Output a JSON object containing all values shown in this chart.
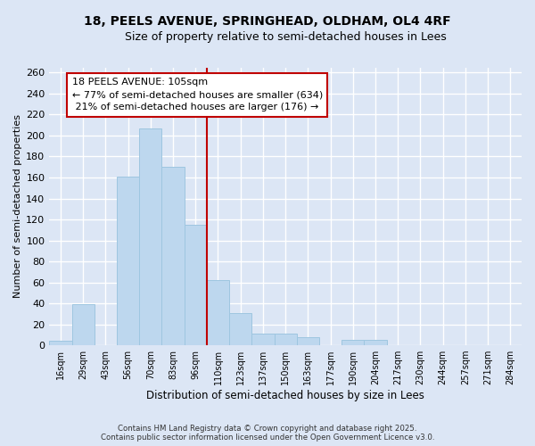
{
  "title": "18, PEELS AVENUE, SPRINGHEAD, OLDHAM, OL4 4RF",
  "subtitle": "Size of property relative to semi-detached houses in Lees",
  "xlabel": "Distribution of semi-detached houses by size in Lees",
  "ylabel": "Number of semi-detached properties",
  "bar_labels": [
    "16sqm",
    "29sqm",
    "43sqm",
    "56sqm",
    "70sqm",
    "83sqm",
    "96sqm",
    "110sqm",
    "123sqm",
    "137sqm",
    "150sqm",
    "163sqm",
    "177sqm",
    "190sqm",
    "204sqm",
    "217sqm",
    "230sqm",
    "244sqm",
    "257sqm",
    "271sqm",
    "284sqm"
  ],
  "bar_values": [
    4,
    39,
    0,
    161,
    207,
    170,
    115,
    62,
    31,
    11,
    11,
    8,
    0,
    5,
    5,
    0,
    0,
    0,
    0,
    0,
    0
  ],
  "bar_color": "#bdd7ee",
  "bar_edge_color": "#9ec6e0",
  "bg_color": "#dce6f5",
  "grid_color": "#c8d8ee",
  "vline_color": "#c00000",
  "annotation_title": "18 PEELS AVENUE: 105sqm",
  "annotation_line1": "← 77% of semi-detached houses are smaller (634)",
  "annotation_line2": " 21% of semi-detached houses are larger (176) →",
  "ylim": [
    0,
    265
  ],
  "yticks": [
    0,
    20,
    40,
    60,
    80,
    100,
    120,
    140,
    160,
    180,
    200,
    220,
    240,
    260
  ],
  "footer_line1": "Contains HM Land Registry data © Crown copyright and database right 2025.",
  "footer_line2": "Contains public sector information licensed under the Open Government Licence v3.0."
}
